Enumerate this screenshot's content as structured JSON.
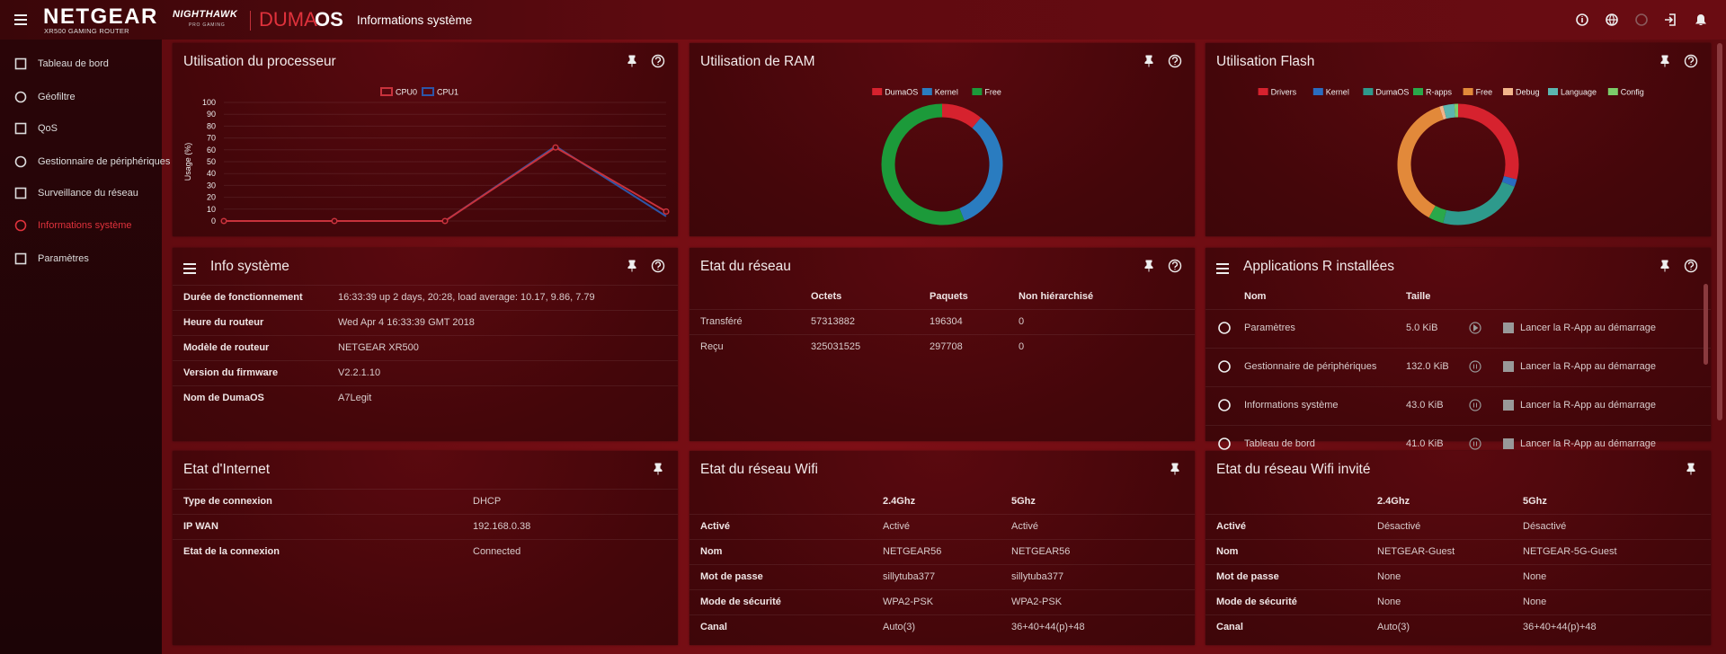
{
  "header": {
    "brand": "NETGEAR",
    "model": "XR500 GAMING ROUTER",
    "logo": "NIGHTHAWK",
    "logo_sub": "PRO GAMING",
    "product_a": "DUMA",
    "product_b": "OS",
    "page_title": "Informations système"
  },
  "sidebar": {
    "items": [
      "Tableau de bord",
      "Géofiltre",
      "QoS",
      "Gestionnaire de périphériques",
      "Surveillance du réseau",
      "Informations système",
      "Paramètres"
    ],
    "active": 5
  },
  "cpu": {
    "title": "Utilisation du processeur",
    "chart_data": {
      "type": "line",
      "y_label": "Usage (%)",
      "categories": [
        null,
        null,
        null,
        null,
        null
      ],
      "series": [
        {
          "name": "CPU0",
          "color": "#c8323c",
          "values": [
            0,
            0,
            0,
            62,
            8
          ]
        },
        {
          "name": "CPU1",
          "color": "#2d55a8",
          "values": [
            0,
            0,
            0,
            63,
            4
          ]
        }
      ],
      "ylim": [
        0,
        100
      ],
      "yticks": [
        0,
        10,
        20,
        30,
        40,
        50,
        60,
        70,
        80,
        90,
        100
      ],
      "grid": true
    }
  },
  "ram": {
    "title": "Utilisation de RAM",
    "chart_data": {
      "type": "donut",
      "categories": [
        "DumaOS",
        "Kernel",
        "Free"
      ],
      "values": [
        11,
        33,
        56
      ],
      "colors": [
        "#d6222e",
        "#2a7cc0",
        "#1c9a3a"
      ]
    }
  },
  "flash": {
    "title": "Utilisation Flash",
    "chart_data": {
      "type": "donut",
      "categories": [
        "Drivers",
        "Kernel",
        "DumaOS",
        "R-apps",
        "Free",
        "Debug",
        "Language",
        "Config"
      ],
      "values": [
        29,
        2,
        23,
        4,
        37,
        1,
        3,
        1
      ],
      "colors": [
        "#d6222e",
        "#2a6cc0",
        "#2e9a8c",
        "#2aa84a",
        "#e2893a",
        "#f2b48a",
        "#5cb6b0",
        "#7ccc6a"
      ]
    }
  },
  "info": {
    "title": "Info système",
    "rows": [
      [
        "Durée de fonctionnement",
        "16:33:39 up 2 days, 20:28, load average: 10.17, 9.86, 7.79"
      ],
      [
        "Heure du routeur",
        "Wed Apr 4 16:33:39 GMT 2018"
      ],
      [
        "Modèle de routeur",
        "NETGEAR XR500"
      ],
      [
        "Version du firmware",
        "V2.2.1.10"
      ],
      [
        "Nom de DumaOS",
        "A7Legit"
      ]
    ]
  },
  "network": {
    "title": "Etat du réseau",
    "headers": [
      "Octets",
      "Paquets",
      "Non hiérarchisé"
    ],
    "rows": [
      [
        "Transféré",
        "57313882",
        "196304",
        "0"
      ],
      [
        "Reçu",
        "325031525",
        "297708",
        "0"
      ]
    ]
  },
  "apps": {
    "title": "Applications R installées",
    "headers": [
      "Nom",
      "Taille"
    ],
    "launch_label": "Lancer la R-App au démarrage",
    "rows": [
      [
        "Paramètres",
        "5.0 KiB"
      ],
      [
        "Gestionnaire de périphériques",
        "132.0 KiB"
      ],
      [
        "Informations système",
        "43.0 KiB"
      ],
      [
        "Tableau de bord",
        "41.0 KiB"
      ]
    ]
  },
  "internet": {
    "title": "Etat d'Internet",
    "rows": [
      [
        "Type de connexion",
        "DHCP"
      ],
      [
        "IP WAN",
        "192.168.0.38"
      ],
      [
        "Etat de la connexion",
        "Connected"
      ]
    ]
  },
  "wifi": {
    "title": "Etat du réseau Wifi",
    "headers": [
      "2.4Ghz",
      "5Ghz"
    ],
    "rows": [
      [
        "Activé",
        "Activé",
        "Activé"
      ],
      [
        "Nom",
        "NETGEAR56",
        "NETGEAR56"
      ],
      [
        "Mot de passe",
        "sillytuba377",
        "sillytuba377"
      ],
      [
        "Mode de sécurité",
        "WPA2-PSK",
        "WPA2-PSK"
      ],
      [
        "Canal",
        "Auto(3)",
        "36+40+44(p)+48"
      ]
    ]
  },
  "guest": {
    "title": "Etat du réseau Wifi invité",
    "headers": [
      "2.4Ghz",
      "5Ghz"
    ],
    "rows": [
      [
        "Activé",
        "Désactivé",
        "Désactivé"
      ],
      [
        "Nom",
        "NETGEAR-Guest",
        "NETGEAR-5G-Guest"
      ],
      [
        "Mot de passe",
        "None",
        "None"
      ],
      [
        "Mode de sécurité",
        "None",
        "None"
      ],
      [
        "Canal",
        "Auto(3)",
        "36+40+44(p)+48"
      ]
    ]
  }
}
